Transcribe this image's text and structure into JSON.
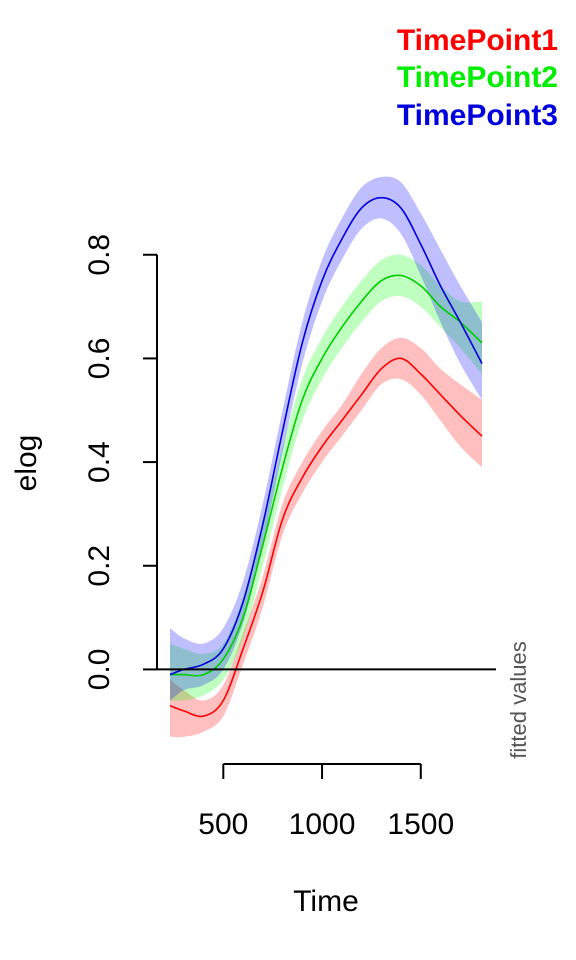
{
  "chart_data": {
    "type": "line",
    "xlabel": "Time",
    "ylabel": "elog",
    "side_label": "fitted values",
    "xlim": [
      230,
      1810
    ],
    "ylim": [
      -0.14,
      0.95
    ],
    "x_ticks": [
      500,
      1000,
      1500
    ],
    "x_tick_labels": [
      "500",
      "1000",
      "1500"
    ],
    "y_ticks": [
      0.0,
      0.2,
      0.4,
      0.6,
      0.8
    ],
    "y_tick_labels": [
      "0.0",
      "0.2",
      "0.4",
      "0.6",
      "0.8"
    ],
    "hline_y": 0.0,
    "grid": false,
    "legend_position": "top-right",
    "x": [
      230,
      300,
      400,
      500,
      600,
      700,
      800,
      900,
      1000,
      1100,
      1200,
      1300,
      1400,
      1500,
      1600,
      1700,
      1810
    ],
    "series": [
      {
        "name": "TimePoint1",
        "color": "#ff0000",
        "band_color": "rgba(255,0,0,0.25)",
        "y": [
          -0.07,
          -0.08,
          -0.09,
          -0.06,
          0.04,
          0.15,
          0.29,
          0.37,
          0.43,
          0.48,
          0.53,
          0.58,
          0.6,
          0.57,
          0.53,
          0.49,
          0.45
        ],
        "lower": [
          -0.13,
          -0.13,
          -0.12,
          -0.09,
          0.01,
          0.12,
          0.26,
          0.34,
          0.4,
          0.45,
          0.5,
          0.55,
          0.56,
          0.53,
          0.48,
          0.43,
          0.39
        ],
        "upper": [
          -0.02,
          -0.04,
          -0.06,
          -0.03,
          0.07,
          0.18,
          0.32,
          0.4,
          0.46,
          0.51,
          0.57,
          0.62,
          0.64,
          0.62,
          0.58,
          0.55,
          0.52
        ]
      },
      {
        "name": "TimePoint2",
        "color": "#00cc00",
        "band_color": "rgba(0,255,0,0.25)",
        "y": [
          -0.01,
          -0.01,
          -0.01,
          0.02,
          0.1,
          0.24,
          0.39,
          0.52,
          0.6,
          0.66,
          0.71,
          0.75,
          0.76,
          0.74,
          0.7,
          0.67,
          0.63
        ],
        "lower": [
          -0.06,
          -0.06,
          -0.05,
          -0.02,
          0.06,
          0.2,
          0.35,
          0.48,
          0.56,
          0.62,
          0.67,
          0.71,
          0.72,
          0.7,
          0.66,
          0.62,
          0.57
        ],
        "upper": [
          0.05,
          0.04,
          0.03,
          0.05,
          0.14,
          0.28,
          0.43,
          0.56,
          0.64,
          0.7,
          0.75,
          0.79,
          0.8,
          0.78,
          0.74,
          0.71,
          0.71
        ]
      },
      {
        "name": "TimePoint3",
        "color": "#0000dd",
        "band_color": "rgba(0,0,255,0.25)",
        "y": [
          -0.01,
          0.0,
          0.01,
          0.04,
          0.13,
          0.28,
          0.46,
          0.63,
          0.75,
          0.83,
          0.89,
          0.91,
          0.89,
          0.82,
          0.74,
          0.67,
          0.59
        ],
        "lower": [
          -0.06,
          -0.04,
          -0.03,
          0.0,
          0.09,
          0.24,
          0.42,
          0.59,
          0.71,
          0.79,
          0.85,
          0.87,
          0.84,
          0.76,
          0.67,
          0.59,
          0.52
        ],
        "upper": [
          0.08,
          0.06,
          0.05,
          0.08,
          0.17,
          0.32,
          0.5,
          0.67,
          0.79,
          0.87,
          0.93,
          0.95,
          0.94,
          0.88,
          0.81,
          0.74,
          0.67
        ]
      }
    ]
  }
}
